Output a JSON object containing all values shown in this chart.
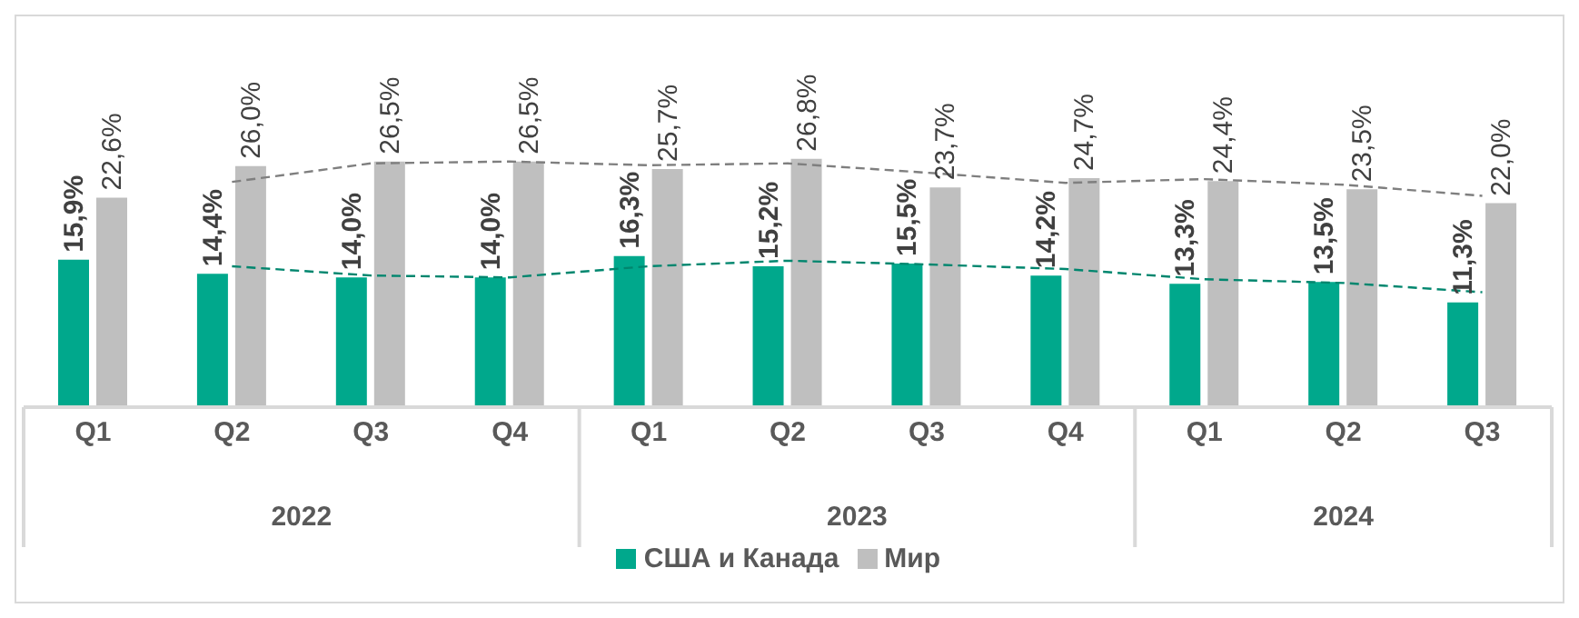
{
  "chart_data": {
    "type": "bar",
    "categories": [
      "Q1",
      "Q2",
      "Q3",
      "Q4",
      "Q1",
      "Q2",
      "Q3",
      "Q4",
      "Q1",
      "Q2",
      "Q3"
    ],
    "series": [
      {
        "name": "США и Канада",
        "color": "#00a88c",
        "values": [
          15.9,
          14.4,
          14.0,
          14.0,
          16.3,
          15.2,
          15.5,
          14.2,
          13.3,
          13.5,
          11.3
        ],
        "value_labels": [
          "15,9%",
          "14,4%",
          "14,0%",
          "14,0%",
          "16,3%",
          "15,2%",
          "15,5%",
          "14,2%",
          "13,3%",
          "13,5%",
          "11,3%"
        ]
      },
      {
        "name": "Мир",
        "color": "#bfbfbf",
        "values": [
          22.6,
          26.0,
          26.5,
          26.5,
          25.7,
          26.8,
          23.7,
          24.7,
          24.4,
          23.5,
          22.0
        ],
        "value_labels": [
          "22,6%",
          "26,0%",
          "26,5%",
          "26,5%",
          "25,7%",
          "26,8%",
          "23,7%",
          "24,7%",
          "24,4%",
          "23,5%",
          "22,0%"
        ]
      },
      {
        "type": "line",
        "color": "#00866e",
        "values": [
          null,
          15.2,
          14.2,
          14.0,
          15.2,
          15.8,
          15.4,
          14.9,
          13.8,
          13.4,
          12.4
        ],
        "line_style": "dashed",
        "marker": "none"
      },
      {
        "type": "line",
        "color": "#7f7f7f",
        "values": [
          null,
          24.3,
          26.3,
          26.5,
          26.1,
          26.3,
          25.3,
          24.2,
          24.6,
          24.0,
          22.8
        ],
        "line_style": "dashed",
        "marker": "none"
      }
    ],
    "annotations": [
      "2022",
      "2023",
      "2024"
    ],
    "legend": "bottom",
    "tick_labels": "x"
  }
}
